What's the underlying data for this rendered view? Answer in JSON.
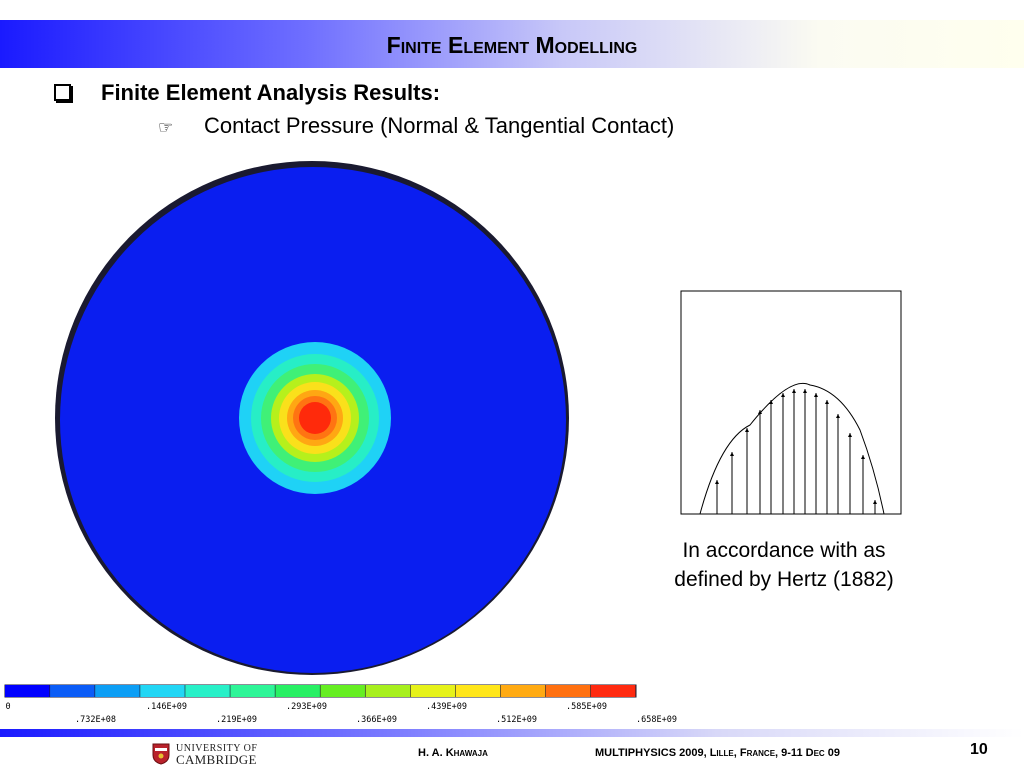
{
  "header": {
    "title": "Finite Element Modelling"
  },
  "content": {
    "bullet_1": "Finite Element  Analysis Results:",
    "bullet_2": "Contact Pressure (Normal & Tangential Contact)"
  },
  "contour_legend": {
    "labels_top": [
      "0",
      ".146E+09",
      ".293E+09",
      ".439E+09",
      ".585E+09"
    ],
    "labels_bottom": [
      ".732E+08",
      ".219E+09",
      ".366E+09",
      ".512E+09",
      ".658E+09"
    ],
    "colors": [
      "#0000ff",
      "#0b5cf7",
      "#0c9ef5",
      "#22d6f5",
      "#28f0c8",
      "#2ef598",
      "#28f064",
      "#66ee22",
      "#a7ef1e",
      "#e6f21a",
      "#ffe61a",
      "#ffaa12",
      "#ff7010",
      "#ff2a10"
    ]
  },
  "fea_plot": {
    "rings": [
      "#1fd2f6",
      "#27eec6",
      "#40f077",
      "#b6f01c",
      "#fae01b",
      "#ffa713",
      "#ff7412",
      "#ff2a0b"
    ]
  },
  "hertz_figure": {
    "caption_line1": "In accordance with as",
    "caption_line2": "defined by Hertz (1882)"
  },
  "footer": {
    "logo_line1": "UNIVERSITY OF",
    "logo_line2": "CAMBRIDGE",
    "author": "H. A. Khawaja",
    "conference": "MULTIPHYSICS 2009, Lille, France, 9-11 Dec 09",
    "page_number": "10"
  }
}
